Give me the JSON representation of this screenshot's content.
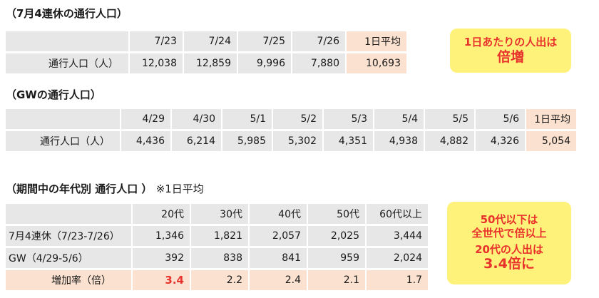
{
  "section1": {
    "title": "（7月4連休の通行人口）",
    "headers": [
      "7/23",
      "7/24",
      "7/25",
      "7/26",
      "1日平均"
    ],
    "row_label": "通行人口（人）",
    "values": [
      "12,038",
      "12,859",
      "9,996",
      "7,880",
      "10,693"
    ]
  },
  "callout1": {
    "line1": "1日あたりの人出は",
    "line2": "倍増"
  },
  "section2": {
    "title": "（GWの通行人口）",
    "headers": [
      "4/29",
      "4/30",
      "5/1",
      "5/2",
      "5/3",
      "5/4",
      "5/5",
      "5/6",
      "1日平均"
    ],
    "row_label": "通行人口（人）",
    "values": [
      "4,436",
      "6,214",
      "5,985",
      "5,302",
      "4,351",
      "4,938",
      "4,882",
      "4,326",
      "5,054"
    ]
  },
  "section3": {
    "title": "（期間中の年代別 通行人口 ）",
    "note": "※1日平均",
    "headers": [
      "20代",
      "30代",
      "40代",
      "50代",
      "60代以上"
    ],
    "rows": [
      {
        "label": "7月4連休（7/23-7/26）",
        "values": [
          "1,346",
          "1,821",
          "2,057",
          "2,025",
          "3,444"
        ]
      },
      {
        "label": "GW（4/29-5/6）",
        "values": [
          "392",
          "838",
          "841",
          "959",
          "2,024"
        ]
      },
      {
        "label": "増加率（倍）",
        "values": [
          "3.4",
          "2.2",
          "2.4",
          "2.1",
          "1.7"
        ]
      }
    ]
  },
  "callout2": {
    "line1": "50代以下は",
    "line2": "全世代で倍以上",
    "line3": "20代の人出は",
    "line4": "3.4倍に"
  },
  "colors": {
    "accent_red": "#e8322c",
    "callout_yellow": "#fff27a",
    "highlight_pink": "#fbe1cf",
    "cell_gray": "#e7e7e7"
  }
}
